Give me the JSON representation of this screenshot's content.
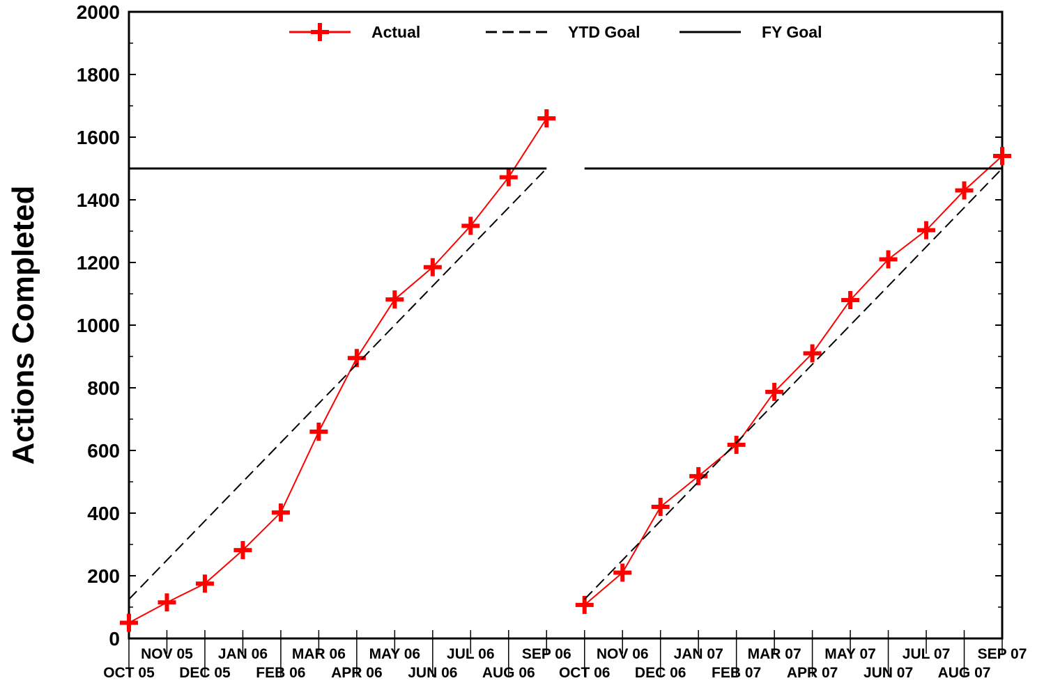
{
  "chart_data": {
    "type": "line",
    "ylabel": "Actions Completed",
    "xlabel": "",
    "ylim": [
      0,
      2000
    ],
    "yticks": [
      0,
      200,
      400,
      600,
      800,
      1000,
      1200,
      1400,
      1600,
      1800,
      2000
    ],
    "categories": [
      "OCT 05",
      "NOV 05",
      "DEC 05",
      "JAN 06",
      "FEB 06",
      "MAR 06",
      "APR 06",
      "MAY 06",
      "JUN 06",
      "JUL 06",
      "AUG 06",
      "SEP 06",
      "OCT 06",
      "NOV 06",
      "DEC 06",
      "JAN 07",
      "FEB 07",
      "MAR 07",
      "APR 07",
      "MAY 07",
      "JUN 07",
      "JUL 07",
      "AUG 07",
      "SEP 07"
    ],
    "legend_position": "top",
    "grid": false,
    "series": [
      {
        "name": "Actual",
        "style": "line-plus-markers",
        "color": "#ff0000",
        "segments": [
          {
            "x": [
              "OCT 05",
              "NOV 05",
              "DEC 05",
              "JAN 06",
              "FEB 06",
              "MAR 06",
              "APR 06",
              "MAY 06",
              "JUN 06",
              "JUL 06",
              "AUG 06",
              "SEP 06"
            ],
            "values": [
              50,
              115,
              175,
              282,
              402,
              660,
              895,
              1082,
              1185,
              1317,
              1472,
              1660
            ]
          },
          {
            "x": [
              "OCT 06",
              "NOV 06",
              "DEC 06",
              "JAN 07",
              "FEB 07",
              "MAR 07",
              "APR 07",
              "MAY 07",
              "JUN 07",
              "JUL 07",
              "AUG 07",
              "SEP 07"
            ],
            "values": [
              107,
              210,
              420,
              518,
              618,
              787,
              910,
              1080,
              1210,
              1303,
              1430,
              1540
            ]
          }
        ]
      },
      {
        "name": "YTD Goal",
        "style": "dashed",
        "color": "#000000",
        "segments": [
          {
            "x": [
              "OCT 05",
              "SEP 06"
            ],
            "values": [
              125,
              1500
            ]
          },
          {
            "x": [
              "OCT 06",
              "SEP 07"
            ],
            "values": [
              125,
              1500
            ]
          }
        ]
      },
      {
        "name": "FY Goal",
        "style": "solid",
        "color": "#000000",
        "segments": [
          {
            "x": [
              "OCT 05",
              "SEP 06"
            ],
            "values": [
              1500,
              1500
            ]
          },
          {
            "x": [
              "OCT 06",
              "SEP 07"
            ],
            "values": [
              1500,
              1500
            ]
          }
        ]
      }
    ]
  }
}
